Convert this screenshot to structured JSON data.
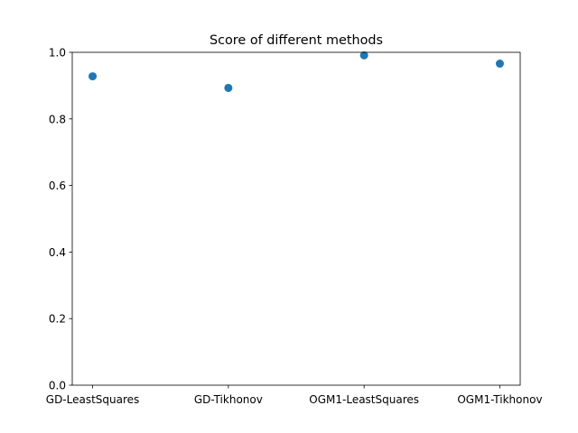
{
  "chart_data": {
    "type": "scatter",
    "title": "Score of different methods",
    "xlabel": "",
    "ylabel": "",
    "categories": [
      "GD-LeastSquares",
      "GD-Tikhonov",
      "OGM1-LeastSquares",
      "OGM1-Tikhonov"
    ],
    "values": [
      0.928,
      0.893,
      0.991,
      0.966
    ],
    "ylim": [
      0.0,
      1.0
    ],
    "yticks": [
      "0.0",
      "0.2",
      "0.4",
      "0.6",
      "0.8",
      "1.0"
    ],
    "grid": false,
    "marker_color": "#1f77b4"
  }
}
